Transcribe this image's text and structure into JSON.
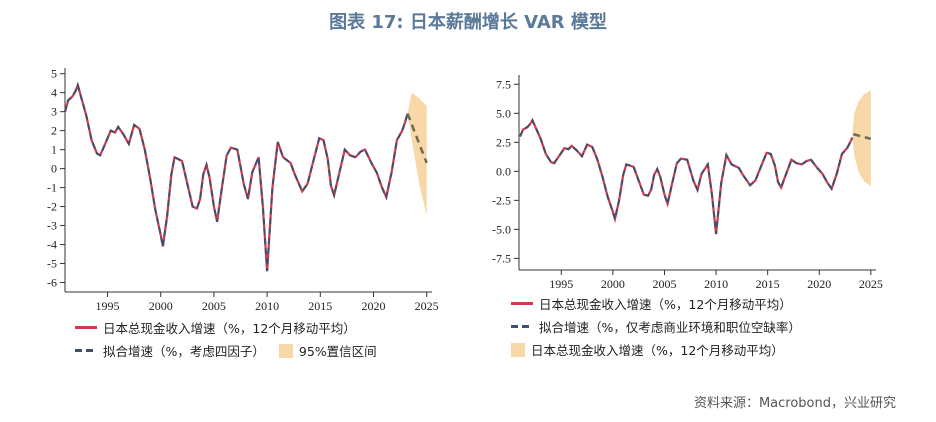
{
  "title": "图表 17: 日本薪酬增长 VAR 模型",
  "source": "资料来源：Macrobond，兴业研究",
  "colors": {
    "actual": "#d3394d",
    "fitted": "#3f4f6e",
    "band": "#f7d8a6"
  },
  "chart_data": [
    {
      "type": "line",
      "xlim": [
        1991,
        2025.5
      ],
      "ylim": [
        -6.5,
        5.3
      ],
      "yticks": [
        "5",
        "4",
        "3",
        "2",
        "1",
        "0",
        "-1",
        "-2",
        "-3",
        "-4",
        "-5",
        "-6"
      ],
      "xticks": [
        "1995",
        "2000",
        "2005",
        "2010",
        "2015",
        "2020",
        "2025"
      ],
      "legend": [
        "日本总现金收入增速（%，12个月移动平均）",
        "拟合增速（%，考虑四因子）",
        "95%置信区间"
      ],
      "legend_placement": "bottom",
      "forecast": [
        [
          2023.2,
          2.9
        ],
        [
          2025,
          0.3
        ]
      ],
      "band": {
        "x": [
          2023.2,
          2023.6,
          2024.3,
          2025
        ],
        "upper": [
          2.9,
          4.0,
          3.7,
          3.3
        ],
        "lower": [
          2.9,
          1.5,
          -0.8,
          -2.5
        ]
      }
    },
    {
      "type": "line",
      "xlim": [
        1990.9,
        2025.5
      ],
      "ylim": [
        -8.5,
        8.3
      ],
      "yticks": [
        "7.5",
        "5.0",
        "2.5",
        "0.0",
        "-2.5",
        "-5.0",
        "-7.5"
      ],
      "xticks": [
        "1995",
        "2000",
        "2005",
        "2010",
        "2015",
        "2020",
        "2025"
      ],
      "legend": [
        "日本总现金收入增速（%，12个月移动平均）",
        "拟合增速（%，仅考虑商业环境和职位空缺率）",
        "日本总现金收入增速（%，12个月移动平均）"
      ],
      "legend_placement": "bottom",
      "forecast": [
        [
          2023.3,
          3.2
        ],
        [
          2025,
          2.8
        ]
      ],
      "band": {
        "x": [
          2023.2,
          2023.4,
          2023.8,
          2024.3,
          2025
        ],
        "upper": [
          3.2,
          5.0,
          6.0,
          6.6,
          7.0
        ],
        "lower": [
          3.2,
          1.3,
          0.0,
          -0.8,
          -1.3
        ]
      }
    }
  ],
  "history": [
    [
      1991,
      3.0
    ],
    [
      1991.3,
      3.6
    ],
    [
      1991.7,
      3.8
    ],
    [
      1992,
      4.1
    ],
    [
      1992.2,
      4.4
    ],
    [
      1992.5,
      3.8
    ],
    [
      1993,
      2.8
    ],
    [
      1993.5,
      1.5
    ],
    [
      1994,
      0.8
    ],
    [
      1994.3,
      0.7
    ],
    [
      1994.7,
      1.2
    ],
    [
      1995,
      1.6
    ],
    [
      1995.3,
      2.0
    ],
    [
      1995.7,
      1.9
    ],
    [
      1996,
      2.2
    ],
    [
      1996.5,
      1.8
    ],
    [
      1997,
      1.3
    ],
    [
      1997.5,
      2.3
    ],
    [
      1998,
      2.1
    ],
    [
      1998.5,
      1.0
    ],
    [
      1999,
      -0.5
    ],
    [
      1999.5,
      -2.2
    ],
    [
      2000,
      -3.5
    ],
    [
      2000.2,
      -4.1
    ],
    [
      2000.6,
      -2.5
    ],
    [
      2001,
      -0.3
    ],
    [
      2001.3,
      0.6
    ],
    [
      2002,
      0.4
    ],
    [
      2002.5,
      -0.8
    ],
    [
      2003,
      -2.0
    ],
    [
      2003.4,
      -2.1
    ],
    [
      2003.7,
      -1.6
    ],
    [
      2004,
      -0.3
    ],
    [
      2004.3,
      0.2
    ],
    [
      2004.6,
      -0.5
    ],
    [
      2005,
      -2.0
    ],
    [
      2005.3,
      -2.8
    ],
    [
      2005.7,
      -1.2
    ],
    [
      2006.2,
      0.7
    ],
    [
      2006.6,
      1.1
    ],
    [
      2007.2,
      1.0
    ],
    [
      2007.8,
      -0.8
    ],
    [
      2008.2,
      -1.6
    ],
    [
      2008.6,
      -0.2
    ],
    [
      2009.2,
      0.6
    ],
    [
      2009.6,
      -2.0
    ],
    [
      2010,
      -5.4
    ],
    [
      2010.5,
      -1.0
    ],
    [
      2011,
      1.4
    ],
    [
      2011.5,
      0.6
    ],
    [
      2012.2,
      0.3
    ],
    [
      2012.6,
      -0.3
    ],
    [
      2013.3,
      -1.2
    ],
    [
      2013.8,
      -0.8
    ],
    [
      2014.3,
      0.3
    ],
    [
      2014.9,
      1.6
    ],
    [
      2015.3,
      1.5
    ],
    [
      2015.7,
      0.5
    ],
    [
      2016,
      -0.9
    ],
    [
      2016.3,
      -1.4
    ],
    [
      2016.8,
      -0.2
    ],
    [
      2017.3,
      1.0
    ],
    [
      2017.8,
      0.7
    ],
    [
      2018.3,
      0.6
    ],
    [
      2018.8,
      0.9
    ],
    [
      2019.2,
      1.0
    ],
    [
      2019.8,
      0.3
    ],
    [
      2020.3,
      -0.2
    ],
    [
      2020.8,
      -1.0
    ],
    [
      2021.2,
      -1.5
    ],
    [
      2021.7,
      -0.2
    ],
    [
      2022.2,
      1.5
    ],
    [
      2022.7,
      2.0
    ],
    [
      2023,
      2.5
    ],
    [
      2023.2,
      2.9
    ]
  ]
}
